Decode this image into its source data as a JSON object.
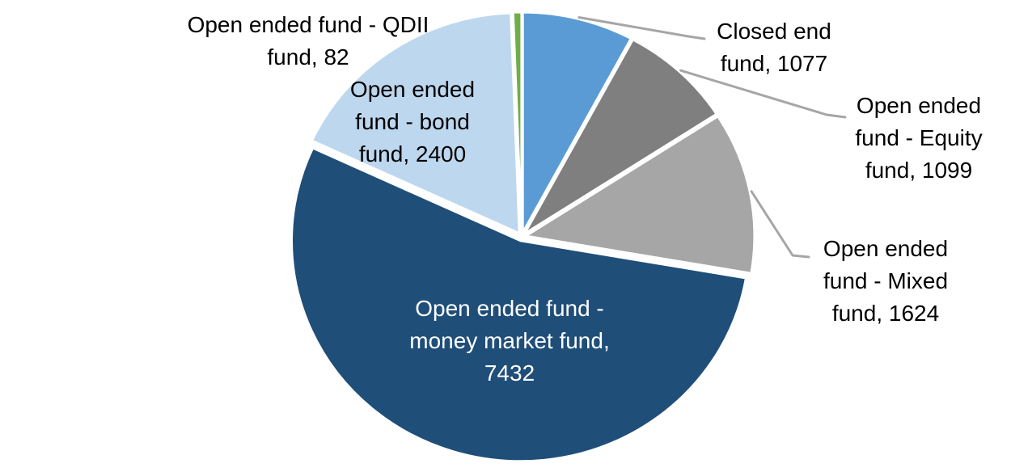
{
  "page": {
    "background": "#FFFFFF"
  },
  "chart_data": {
    "type": "pie",
    "title": "",
    "total": 13714,
    "start_angle_deg": 0,
    "direction": "clockwise",
    "legend_position": "none",
    "data_label_format": "category, value",
    "slice_border_color": "#FFFFFF",
    "leader_line_color": "#A6A6A6",
    "slices": [
      {
        "id": "closed-end",
        "label": "Closed end fund",
        "value": 1077,
        "color": "#5B9BD5",
        "label_lines": [
          "Closed end",
          "fund, 1077"
        ],
        "label_color": "#000000",
        "label_position": "outside",
        "has_leader_line": true
      },
      {
        "id": "equity",
        "label": "Open ended fund - Equity fund",
        "value": 1099,
        "color": "#7F7F7F",
        "label_lines": [
          "Open ended",
          "fund - Equity",
          "fund, 1099"
        ],
        "label_color": "#000000",
        "label_position": "outside",
        "has_leader_line": true
      },
      {
        "id": "mixed",
        "label": "Open ended fund - Mixed fund",
        "value": 1624,
        "color": "#A6A6A6",
        "label_lines": [
          "Open ended",
          "fund - Mixed",
          "fund, 1624"
        ],
        "label_color": "#000000",
        "label_position": "outside",
        "has_leader_line": true
      },
      {
        "id": "money-market",
        "label": "Open ended fund - money market fund",
        "value": 7432,
        "color": "#1F4E79",
        "label_lines": [
          "Open ended fund -",
          "money market fund,",
          "7432"
        ],
        "label_color": "#FFFFFF",
        "label_position": "inside",
        "has_leader_line": false
      },
      {
        "id": "bond",
        "label": "Open ended fund - bond fund",
        "value": 2400,
        "color": "#BDD7EE",
        "label_lines": [
          "Open ended",
          "fund - bond",
          "fund, 2400"
        ],
        "label_color": "#000000",
        "label_position": "inside",
        "has_leader_line": false
      },
      {
        "id": "qdii",
        "label": "Open ended fund - QDII fund",
        "value": 82,
        "color": "#70AD47",
        "label_lines": [
          "Open ended fund - QDII",
          "fund, 82"
        ],
        "label_color": "#000000",
        "label_position": "outside",
        "has_leader_line": false
      }
    ]
  }
}
